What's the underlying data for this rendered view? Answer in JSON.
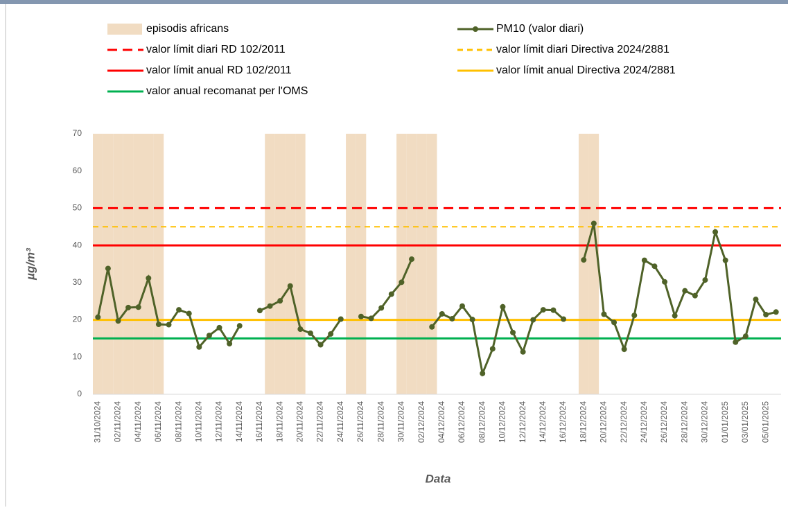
{
  "chart_data": {
    "type": "line",
    "x_label": "Data",
    "y_label": "µg/m³",
    "categories": [
      "31/10/2024",
      null,
      "02/11/2024",
      null,
      "04/11/2024",
      null,
      "06/11/2024",
      null,
      "08/11/2024",
      null,
      "10/11/2024",
      null,
      "12/11/2024",
      null,
      "14/11/2024",
      null,
      "16/11/2024",
      null,
      "18/11/2024",
      null,
      "20/11/2024",
      null,
      "22/11/2024",
      null,
      "24/11/2024",
      null,
      "26/11/2024",
      null,
      "28/11/2024",
      null,
      "30/11/2024",
      null,
      "02/12/2024",
      null,
      "04/12/2024",
      null,
      "06/12/2024",
      null,
      "08/12/2024",
      null,
      "10/12/2024",
      null,
      "12/12/2024",
      null,
      "14/12/2024",
      null,
      "16/12/2024",
      null,
      "18/12/2024",
      null,
      "20/12/2024",
      null,
      "22/12/2024",
      null,
      "24/12/2024",
      null,
      "26/12/2024",
      null,
      "28/12/2024",
      null,
      "30/12/2024",
      null,
      "01/01/2025",
      null,
      "03/01/2025",
      null,
      "05/01/2025",
      null
    ],
    "ylim": [
      0,
      70
    ],
    "yticks": [
      0,
      10,
      20,
      30,
      40,
      50,
      60,
      70
    ],
    "series": [
      {
        "name": "episodis africans",
        "kind": "band",
        "color": "#f1dcc2",
        "values": [
          70,
          70,
          70,
          70,
          70,
          70,
          70,
          null,
          null,
          null,
          null,
          null,
          null,
          null,
          null,
          null,
          null,
          70,
          70,
          70,
          70,
          null,
          null,
          null,
          null,
          70,
          70,
          null,
          null,
          null,
          70,
          70,
          70,
          70,
          null,
          null,
          null,
          null,
          null,
          null,
          null,
          null,
          null,
          null,
          null,
          null,
          null,
          null,
          70,
          70,
          null,
          null,
          null,
          null,
          null,
          null,
          null,
          null,
          null,
          null,
          null,
          null,
          null,
          null,
          null,
          null,
          null,
          null
        ]
      },
      {
        "name": "PM10 (valor diari)",
        "kind": "line",
        "color": "#4f6228",
        "values": [
          20.7,
          33.8,
          19.7,
          23.3,
          23.4,
          31.2,
          18.8,
          18.7,
          22.7,
          21.7,
          12.7,
          15.8,
          17.9,
          13.6,
          18.4,
          null,
          22.5,
          23.7,
          25.1,
          29.1,
          17.5,
          16.4,
          13.3,
          16.2,
          20.2,
          null,
          20.9,
          20.4,
          23.2,
          26.9,
          30.1,
          36.3,
          null,
          18.1,
          21.6,
          20.3,
          23.7,
          20.1,
          5.6,
          12.2,
          23.5,
          16.6,
          11.4,
          20.0,
          22.7,
          22.6,
          20.2,
          null,
          36.1,
          45.9,
          21.5,
          19.3,
          12.1,
          21.2,
          36.0,
          34.4,
          30.2,
          21.1,
          27.8,
          26.5,
          30.7,
          43.6,
          36.0,
          14.0,
          15.6,
          25.5,
          21.4,
          22.1
        ]
      },
      {
        "name": "valor límit diari RD 102/2011",
        "kind": "hline",
        "color": "#ff0000",
        "dash": true,
        "value": 50
      },
      {
        "name": "valor límit diari Directiva 2024/2881",
        "kind": "hline",
        "color": "#ffc000",
        "dash": true,
        "value": 45
      },
      {
        "name": "valor límit anual RD 102/2011",
        "kind": "hline",
        "color": "#ff0000",
        "dash": false,
        "value": 40
      },
      {
        "name": "valor límit anual Directiva 2024/2881",
        "kind": "hline",
        "color": "#ffc000",
        "dash": false,
        "value": 20
      },
      {
        "name": "valor anual recomanat per l'OMS",
        "kind": "hline",
        "color": "#00b050",
        "dash": false,
        "value": 15
      }
    ]
  }
}
